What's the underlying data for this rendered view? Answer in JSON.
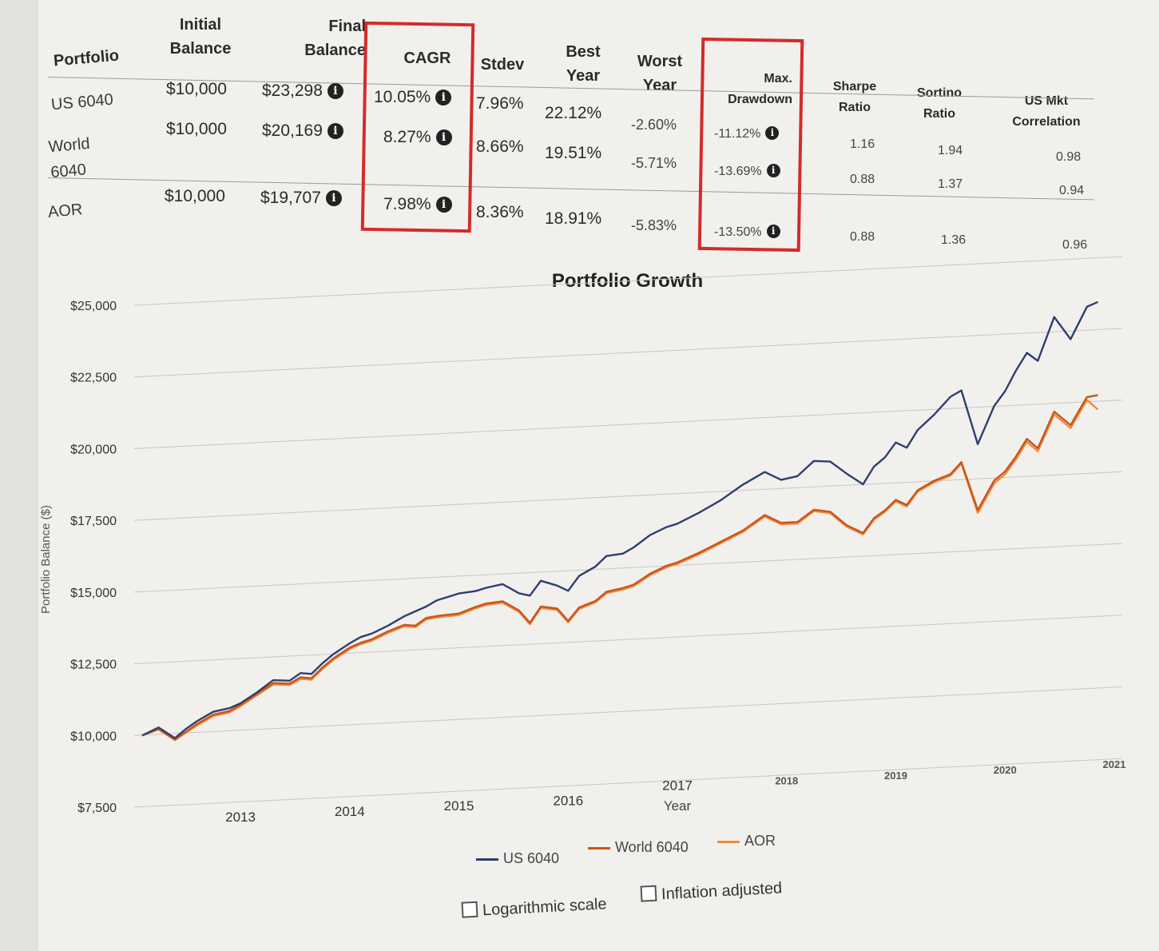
{
  "table": {
    "headers": {
      "portfolio": "Portfolio",
      "initial_balance": "Initial\nBalance",
      "final_balance": "Final\nBalance",
      "cagr": "CAGR",
      "stdev": "Stdev",
      "best_year": "Best\nYear",
      "worst_year": "Worst\nYear",
      "max_drawdown": "Max.\nDrawdown",
      "sharpe": "Sharpe\nRatio",
      "sortino": "Sortino\nRatio",
      "us_mkt_corr": "US Mkt\nCorrelation"
    },
    "rows": [
      {
        "portfolio": "US 6040",
        "initial": "$10,000",
        "final": "$23,298",
        "cagr": "10.05%",
        "stdev": "7.96%",
        "best": "22.12%",
        "worst": "-2.60%",
        "drawdown": "-11.12%",
        "sharpe": "1.16",
        "sortino": "1.94",
        "corr": "0.98"
      },
      {
        "portfolio": "World\n6040",
        "initial": "$10,000",
        "final": "$20,169",
        "cagr": "8.27%",
        "stdev": "8.66%",
        "best": "19.51%",
        "worst": "-5.71%",
        "drawdown": "-13.69%",
        "sharpe": "0.88",
        "sortino": "1.37",
        "corr": "0.94"
      },
      {
        "portfolio": "AOR",
        "initial": "$10,000",
        "final": "$19,707",
        "cagr": "7.98%",
        "stdev": "8.36%",
        "best": "18.91%",
        "worst": "-5.83%",
        "drawdown": "-13.50%",
        "sharpe": "0.88",
        "sortino": "1.36",
        "corr": "0.96"
      }
    ],
    "highlight_color": "#d32b2b",
    "info_icon": "info-circle-icon"
  },
  "controls": {
    "log_scale_label": "Logarithmic scale",
    "log_scale_checked": false,
    "inflation_label": "Inflation adjusted",
    "inflation_checked": false
  },
  "chart_data": {
    "type": "line",
    "title": "Portfolio Growth",
    "xlabel": "Year",
    "ylabel": "Portfolio Balance ($)",
    "ylim": [
      7500,
      25000
    ],
    "xlim": [
      2012.1,
      2021.0
    ],
    "yticks": [
      "$7,500",
      "$10,000",
      "$12,500",
      "$15,000",
      "$17,500",
      "$20,000",
      "$22,500",
      "$25,000"
    ],
    "xticks": [
      "2013",
      "2014",
      "2015",
      "2016",
      "2017",
      "2018",
      "2019",
      "2020",
      "2021"
    ],
    "grid": true,
    "legend_position": "bottom",
    "x": [
      2012.1,
      2012.25,
      2012.4,
      2012.5,
      2012.6,
      2012.75,
      2012.9,
      2013.0,
      2013.15,
      2013.3,
      2013.45,
      2013.55,
      2013.65,
      2013.75,
      2013.85,
      2014.0,
      2014.1,
      2014.2,
      2014.35,
      2014.5,
      2014.6,
      2014.7,
      2014.8,
      2015.0,
      2015.15,
      2015.25,
      2015.4,
      2015.55,
      2015.65,
      2015.75,
      2015.9,
      2016.0,
      2016.1,
      2016.25,
      2016.35,
      2016.5,
      2016.6,
      2016.75,
      2016.9,
      2017.0,
      2017.2,
      2017.4,
      2017.6,
      2017.8,
      2017.95,
      2018.1,
      2018.25,
      2018.4,
      2018.55,
      2018.7,
      2018.8,
      2018.9,
      2019.0,
      2019.1,
      2019.2,
      2019.35,
      2019.5,
      2019.6,
      2019.75,
      2019.9,
      2020.0,
      2020.1,
      2020.2,
      2020.3,
      2020.45,
      2020.6,
      2020.75,
      2020.85
    ],
    "series": [
      {
        "name": "US 6040",
        "color": "#2e3f6e",
        "values": [
          10000,
          10250,
          9850,
          10150,
          10400,
          10700,
          10800,
          10950,
          11300,
          11700,
          11650,
          11900,
          11850,
          12200,
          12500,
          12850,
          13050,
          13150,
          13400,
          13700,
          13850,
          14000,
          14200,
          14400,
          14450,
          14550,
          14650,
          14300,
          14200,
          14700,
          14500,
          14300,
          14800,
          15100,
          15450,
          15500,
          15700,
          16100,
          16350,
          16450,
          16800,
          17200,
          17700,
          18100,
          17800,
          17900,
          18400,
          18350,
          17900,
          17500,
          18100,
          18400,
          18900,
          18700,
          19300,
          19800,
          20400,
          20600,
          18700,
          20000,
          20500,
          21200,
          21800,
          21500,
          23000,
          22200,
          23300,
          23450
        ]
      },
      {
        "name": "World 6040",
        "color": "#c9541c",
        "values": [
          10000,
          10200,
          9800,
          10050,
          10300,
          10600,
          10700,
          10900,
          11250,
          11600,
          11550,
          11750,
          11700,
          12050,
          12350,
          12700,
          12850,
          12950,
          13200,
          13400,
          13350,
          13600,
          13650,
          13700,
          13900,
          14000,
          14050,
          13700,
          13250,
          13800,
          13700,
          13250,
          13700,
          13900,
          14200,
          14300,
          14400,
          14750,
          15000,
          15100,
          15400,
          15750,
          16100,
          16600,
          16300,
          16300,
          16700,
          16600,
          16100,
          15800,
          16300,
          16550,
          16900,
          16700,
          17200,
          17500,
          17700,
          18100,
          16400,
          17400,
          17700,
          18200,
          18800,
          18450,
          19700,
          19200,
          20150,
          20200
        ]
      },
      {
        "name": "AOR",
        "color": "#f08a3e",
        "values": [
          10000,
          10180,
          9780,
          10020,
          10250,
          10550,
          10650,
          10850,
          11200,
          11550,
          11500,
          11700,
          11650,
          12000,
          12300,
          12650,
          12800,
          12900,
          13150,
          13350,
          13300,
          13550,
          13600,
          13650,
          13850,
          13950,
          14000,
          13650,
          13200,
          13750,
          13650,
          13200,
          13650,
          13850,
          14150,
          14250,
          14350,
          14700,
          14950,
          15050,
          15350,
          15700,
          16050,
          16550,
          16250,
          16250,
          16650,
          16550,
          16050,
          15750,
          16250,
          16500,
          16850,
          16650,
          17150,
          17450,
          17650,
          18050,
          16300,
          17300,
          17600,
          18100,
          18700,
          18350,
          19600,
          19100,
          20050,
          19700
        ]
      }
    ]
  }
}
